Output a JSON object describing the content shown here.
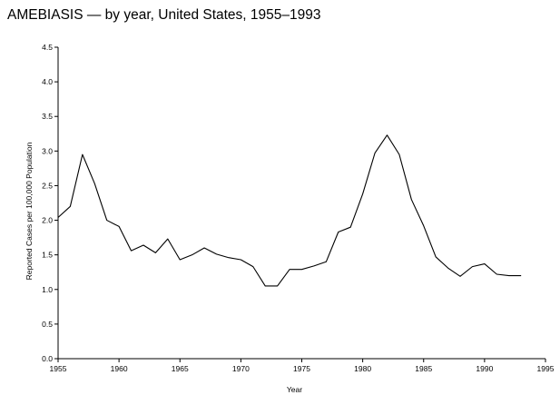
{
  "chart_data": {
    "type": "line",
    "title": "AMEBIASIS — by year, United States, 1955–1993",
    "xlabel": "Year",
    "ylabel": "Reported Cases per 100,000 Population",
    "xlim": [
      1955,
      1995
    ],
    "ylim": [
      0,
      4.5
    ],
    "xticks": [
      1955,
      1960,
      1965,
      1970,
      1975,
      1980,
      1985,
      1990,
      1995
    ],
    "xtick_labels": [
      "1955",
      "1960",
      "1965",
      "1970",
      "1975",
      "1980",
      "1985",
      "1990",
      "1995"
    ],
    "yticks": [
      0,
      0.5,
      1.0,
      1.5,
      2.0,
      2.5,
      3.0,
      3.5,
      4.0,
      4.5
    ],
    "ytick_labels": [
      "0.0",
      "0.5",
      "1.0",
      "1.5",
      "2.0",
      "2.5",
      "3.0",
      "3.5",
      "4.0",
      "4.5"
    ],
    "grid": false,
    "line_color": "#000000",
    "series": [
      {
        "x": [
          1955,
          1956,
          1957,
          1958,
          1959,
          1960,
          1961,
          1962,
          1963,
          1964,
          1965,
          1966,
          1967,
          1968,
          1969,
          1970,
          1971,
          1972,
          1973,
          1974,
          1975,
          1976,
          1977,
          1978,
          1979,
          1980,
          1981,
          1982,
          1983,
          1984,
          1985,
          1986,
          1987,
          1988,
          1989,
          1990,
          1991,
          1992,
          1993
        ],
        "values": [
          2.04,
          2.2,
          2.95,
          2.53,
          2.0,
          1.91,
          1.56,
          1.64,
          1.53,
          1.73,
          1.43,
          1.5,
          1.6,
          1.51,
          1.46,
          1.43,
          1.33,
          1.05,
          1.05,
          1.29,
          1.29,
          1.34,
          1.4,
          1.83,
          1.9,
          2.38,
          2.97,
          3.23,
          2.95,
          2.3,
          1.92,
          1.47,
          1.31,
          1.19,
          1.33,
          1.37,
          1.22,
          1.2,
          1.2
        ]
      }
    ]
  }
}
